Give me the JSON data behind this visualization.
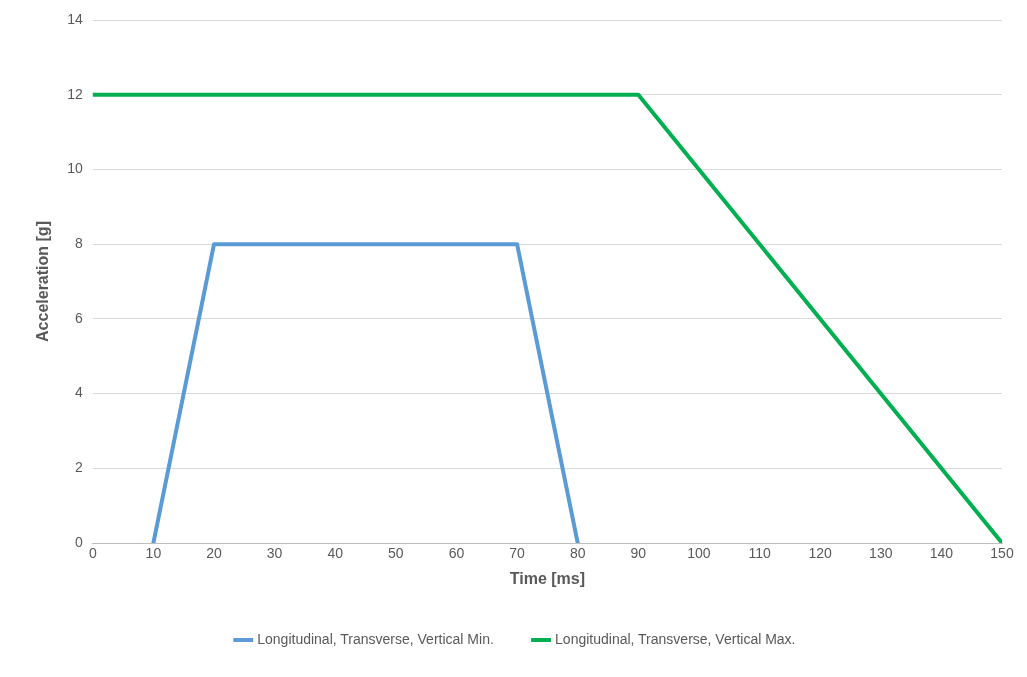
{
  "chart_data": {
    "type": "line",
    "xlabel": "Time [ms]",
    "ylabel": "Acceleration [g]",
    "xlim": [
      0,
      150
    ],
    "xticks": [
      0,
      10,
      20,
      30,
      40,
      50,
      60,
      70,
      80,
      90,
      100,
      110,
      120,
      130,
      140,
      150
    ],
    "ylim": [
      0,
      14
    ],
    "yticks": [
      0,
      2,
      4,
      6,
      8,
      10,
      12,
      14
    ],
    "grid": "y",
    "legend": "bottom",
    "marker": "none",
    "line_style": "solid",
    "series": [
      {
        "name": "Longitudinal, Transverse, Vertical Min.",
        "color": "#5b9bd5",
        "x": [
          10,
          20,
          70,
          80
        ],
        "values": [
          0,
          8,
          8,
          0
        ]
      },
      {
        "name": "Longitudinal, Transverse, Vertical Max.",
        "color": "#00b050",
        "x": [
          0,
          90,
          150
        ],
        "values": [
          12,
          12,
          0
        ]
      }
    ]
  }
}
